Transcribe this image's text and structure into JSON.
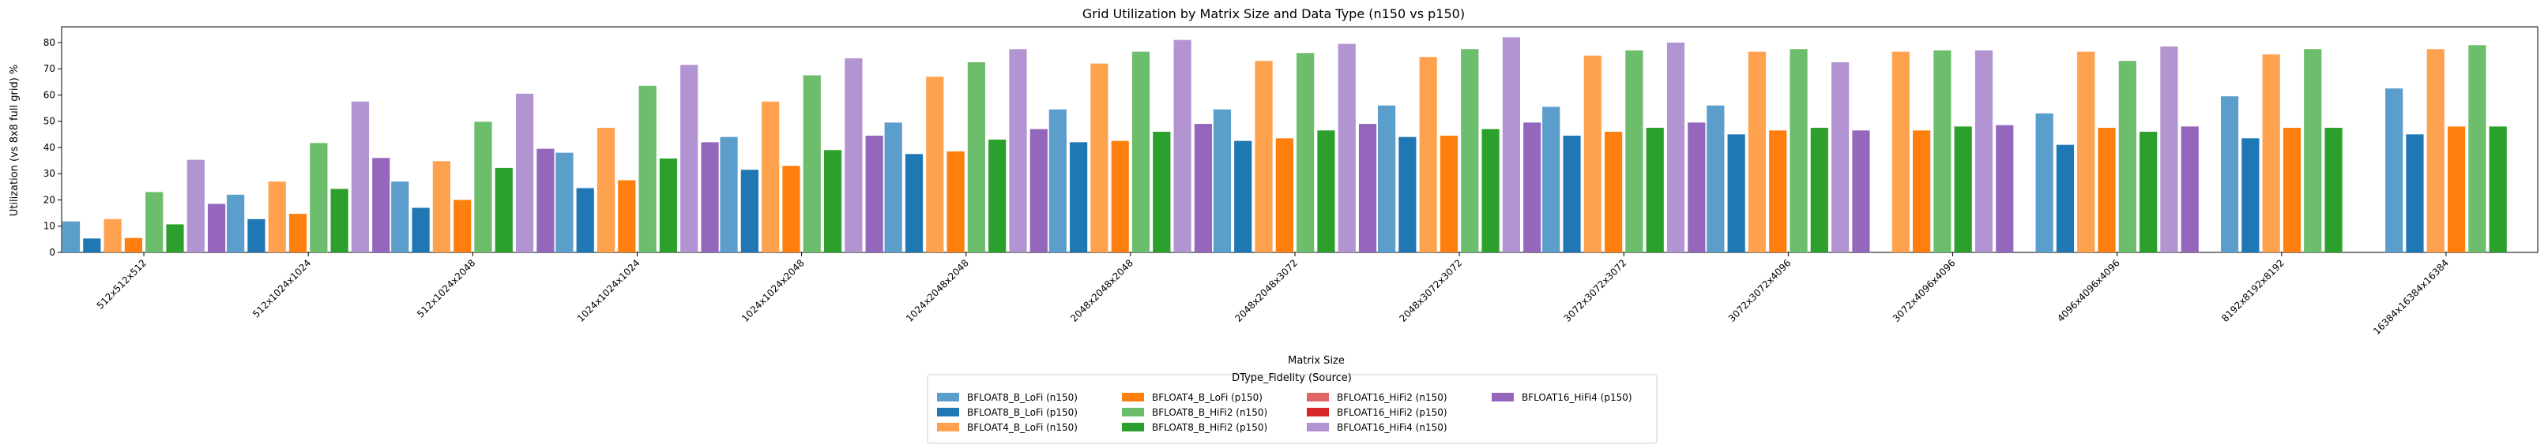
{
  "chart_data": {
    "type": "bar",
    "title": "Grid Utilization by Matrix Size and Data Type (n150 vs p150)",
    "xlabel": "Matrix Size",
    "ylabel": "Utilization (vs 8x8 full grid) %",
    "ylim": [
      0,
      86
    ],
    "yticks": [
      0,
      10,
      20,
      30,
      40,
      50,
      60,
      70,
      80
    ],
    "grid": false,
    "legend_title": "DType_Fidelity (Source)",
    "legend_position": "bottom-center",
    "categories": [
      "512x512x512",
      "512x1024x1024",
      "512x1024x2048",
      "1024x1024x1024",
      "1024x1024x2048",
      "1024x2048x2048",
      "2048x2048x2048",
      "2048x2048x3072",
      "2048x3072x3072",
      "3072x3072x3072",
      "3072x3072x4096",
      "3072x4096x4096",
      "4096x4096x4096",
      "8192x8192x8192",
      "16384x16384x16384"
    ],
    "series": [
      {
        "name": "BFLOAT8_B_LoFi (n150)",
        "color": "#5b9dcb",
        "values": [
          11.8,
          22.0,
          27.0,
          38.0,
          44.0,
          49.5,
          54.5,
          54.5,
          56.0,
          55.5,
          56.0,
          null,
          53.0,
          59.5,
          62.5
        ]
      },
      {
        "name": "BFLOAT8_B_LoFi (p150)",
        "color": "#1f77b4",
        "values": [
          5.3,
          12.7,
          17.0,
          24.5,
          31.5,
          37.5,
          42.0,
          42.5,
          44.0,
          44.5,
          45.0,
          null,
          41.0,
          43.5,
          45.0
        ]
      },
      {
        "name": "BFLOAT4_B_LoFi (n150)",
        "color": "#ffa24f",
        "values": [
          12.7,
          27.0,
          34.8,
          47.5,
          57.5,
          67.0,
          72.0,
          73.0,
          74.5,
          75.0,
          76.5,
          76.5,
          76.5,
          75.5,
          77.5
        ]
      },
      {
        "name": "BFLOAT4_B_LoFi (p150)",
        "color": "#ff7f0e",
        "values": [
          5.5,
          14.7,
          20.0,
          27.5,
          33.0,
          38.5,
          42.5,
          43.5,
          44.5,
          46.0,
          46.5,
          46.5,
          47.5,
          47.5,
          48.0
        ]
      },
      {
        "name": "BFLOAT8_B_HiFi2 (n150)",
        "color": "#6cbd6c",
        "values": [
          23.0,
          41.7,
          49.8,
          63.5,
          67.5,
          72.5,
          76.5,
          76.0,
          77.5,
          77.0,
          77.5,
          77.0,
          73.0,
          77.5,
          79.0
        ]
      },
      {
        "name": "BFLOAT8_B_HiFi2 (p150)",
        "color": "#2ca02c",
        "values": [
          10.7,
          24.2,
          32.2,
          35.8,
          39.0,
          43.0,
          46.0,
          46.5,
          47.0,
          47.5,
          47.5,
          48.0,
          46.0,
          47.5,
          48.0
        ]
      },
      {
        "name": "BFLOAT16_HiFi2 (n150)",
        "color": "#e06666",
        "values": [
          null,
          null,
          null,
          null,
          null,
          null,
          null,
          null,
          null,
          null,
          null,
          null,
          null,
          null,
          null
        ]
      },
      {
        "name": "BFLOAT16_HiFi2 (p150)",
        "color": "#d62728",
        "values": [
          null,
          null,
          null,
          null,
          null,
          null,
          null,
          null,
          null,
          null,
          null,
          null,
          null,
          null,
          null
        ]
      },
      {
        "name": "BFLOAT16_HiFi4 (n150)",
        "color": "#b394d2",
        "values": [
          35.3,
          57.5,
          60.5,
          71.5,
          74.0,
          77.5,
          81.0,
          79.5,
          82.0,
          80.0,
          72.5,
          77.0,
          78.5,
          null,
          null
        ]
      },
      {
        "name": "BFLOAT16_HiFi4 (p150)",
        "color": "#9467bd",
        "values": [
          18.5,
          36.0,
          39.5,
          42.0,
          44.5,
          47.0,
          49.0,
          49.0,
          49.5,
          49.5,
          46.5,
          48.5,
          48.0,
          null,
          null
        ]
      }
    ]
  }
}
